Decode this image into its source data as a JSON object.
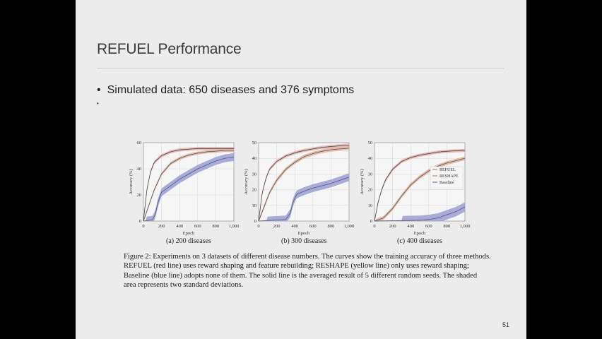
{
  "slide": {
    "title": "REFUEL Performance",
    "bullet": "Simulated data: 650 diseases and 376 symptoms",
    "bullet_marker": "•",
    "bullet2_marker": "•",
    "page_number": "51"
  },
  "figure": {
    "caption": "Figure 2: Experiments on 3 datasets of different disease numbers. The curves show the training accuracy of three methods. REFUEL (red line) uses reward shaping and feature rebuilding; RESHAPE (yellow line) only uses reward shaping; Baseline (blue line) adopts none of them. The solid line is the averaged result of 5 different random seeds. The shaded area represents two standard deviations."
  },
  "chart_data": [
    {
      "type": "line",
      "subcaption": "(a) 200 diseases",
      "xlabel": "Epoch",
      "ylabel": "Accuracy (%)",
      "xlim": [
        0,
        1000
      ],
      "ylim": [
        0,
        60
      ],
      "xticks": [
        "0",
        "200",
        "400",
        "600",
        "800",
        "1,000"
      ],
      "yticks": [
        "0",
        "20",
        "40",
        "60"
      ],
      "grid": true,
      "series": [
        {
          "name": "REFUEL",
          "color": "#444444",
          "band_color": "#e3b0ab",
          "x": [
            0,
            40,
            80,
            120,
            200,
            300,
            400,
            500,
            600,
            700,
            800,
            900,
            1000
          ],
          "y": [
            0,
            25,
            38,
            45,
            50,
            53,
            54.5,
            55,
            55.5,
            55.5,
            55.5,
            55.5,
            55.5
          ],
          "sd": 1.2
        },
        {
          "name": "RESHAPE",
          "color": "#555555",
          "band_color": "#e0b49f",
          "x": [
            0,
            40,
            80,
            120,
            200,
            300,
            400,
            500,
            600,
            700,
            800,
            900,
            1000
          ],
          "y": [
            0,
            8,
            16,
            24,
            36,
            44,
            48,
            50.5,
            52,
            53,
            53.5,
            54,
            54
          ],
          "sd": 1.2
        },
        {
          "name": "Baseline",
          "color": "#555577",
          "band_color": "#9a9fd2",
          "x": [
            0,
            100,
            130,
            160,
            200,
            300,
            400,
            500,
            600,
            700,
            800,
            900,
            1000
          ],
          "y": [
            0,
            1,
            5,
            14,
            22,
            27,
            32,
            36,
            40,
            43,
            46,
            48,
            49
          ],
          "sd": 3
        }
      ]
    },
    {
      "type": "line",
      "subcaption": "(b) 300 diseases",
      "xlabel": "Epoch",
      "ylabel": "Accuracy (%)",
      "xlim": [
        0,
        1000
      ],
      "ylim": [
        0,
        50
      ],
      "xticks": [
        "0",
        "200",
        "400",
        "600",
        "800",
        "1,000"
      ],
      "yticks": [
        "0",
        "10",
        "20",
        "30",
        "40",
        "50"
      ],
      "grid": true,
      "series": [
        {
          "name": "REFUEL",
          "color": "#444444",
          "band_color": "#e3b0ab",
          "x": [
            0,
            40,
            80,
            120,
            200,
            300,
            400,
            500,
            600,
            700,
            800,
            900,
            1000
          ],
          "y": [
            0,
            18,
            27,
            33,
            38,
            41.5,
            43.5,
            45,
            46,
            47,
            47.5,
            48,
            48.5
          ],
          "sd": 1
        },
        {
          "name": "RESHAPE",
          "color": "#555555",
          "band_color": "#e0b49f",
          "x": [
            0,
            40,
            80,
            120,
            200,
            300,
            400,
            500,
            600,
            700,
            800,
            900,
            1000
          ],
          "y": [
            0,
            6,
            12,
            18,
            26,
            33,
            37.5,
            41,
            43,
            44.5,
            45.5,
            46,
            46.5
          ],
          "sd": 1.2
        },
        {
          "name": "Baseline",
          "color": "#555577",
          "band_color": "#9a9fd2",
          "x": [
            0,
            300,
            350,
            380,
            420,
            500,
            600,
            700,
            800,
            900,
            1000
          ],
          "y": [
            0,
            1,
            5,
            12,
            17,
            19,
            21,
            22.5,
            24,
            26,
            28
          ],
          "sd": 2.5
        }
      ]
    },
    {
      "type": "line",
      "subcaption": "(c) 400 diseases",
      "xlabel": "Epoch",
      "ylabel": "Accuracy (%)",
      "xlim": [
        0,
        1000
      ],
      "ylim": [
        0,
        50
      ],
      "xticks": [
        "0",
        "200",
        "400",
        "600",
        "800",
        "1,000"
      ],
      "yticks": [
        "0",
        "10",
        "20",
        "30",
        "40",
        "50"
      ],
      "grid": true,
      "legend": "right",
      "series": [
        {
          "name": "REFUEL",
          "color": "#444444",
          "band_color": "#e3b0ab",
          "x": [
            0,
            40,
            80,
            120,
            200,
            300,
            400,
            500,
            600,
            700,
            800,
            900,
            1000
          ],
          "y": [
            0,
            12,
            20,
            26,
            33,
            38,
            40.5,
            42,
            43,
            44,
            44.5,
            44.8,
            45
          ],
          "sd": 1
        },
        {
          "name": "RESHAPE",
          "color": "#555555",
          "band_color": "#e0b49f",
          "x": [
            0,
            100,
            200,
            300,
            400,
            500,
            600,
            700,
            800,
            900,
            1000
          ],
          "y": [
            0,
            2,
            8,
            16,
            23,
            28,
            32,
            35,
            37,
            38.5,
            40
          ],
          "sd": 1.2
        },
        {
          "name": "Baseline",
          "color": "#555577",
          "band_color": "#9a9fd2",
          "x": [
            0,
            500,
            600,
            700,
            800,
            900,
            1000
          ],
          "y": [
            0,
            0.5,
            1,
            2,
            4,
            6,
            9
          ],
          "sd": 3
        }
      ]
    }
  ]
}
